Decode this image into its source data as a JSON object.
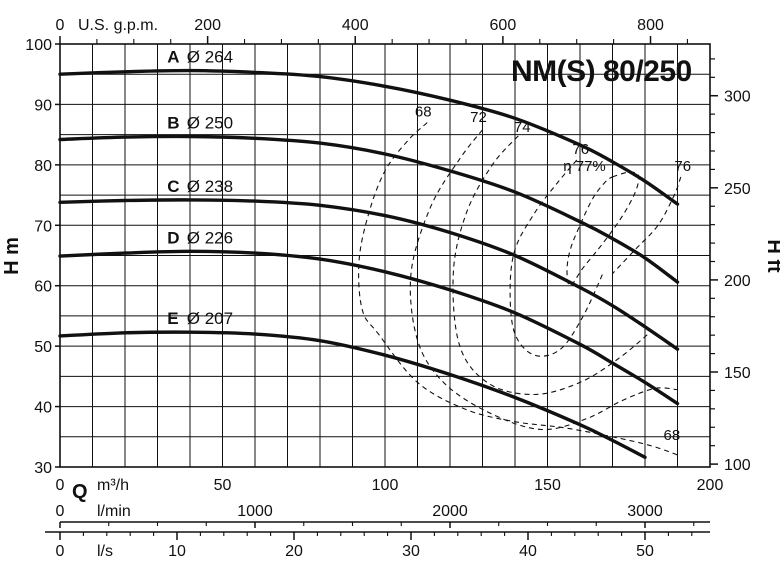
{
  "chart_data": {
    "type": "line",
    "title": "NM(S) 80/250",
    "ylabel": "H m",
    "y2label": "H ft",
    "xlabel": "Q",
    "x_unit": "m3/h",
    "x_units": {
      "top": "U.S. g.p.m.",
      "bottom_main": "m³/h",
      "bottom_lmin": "l/min",
      "bottom_ls": "l/s"
    },
    "xlim": [
      0,
      200
    ],
    "ylim": [
      30,
      100
    ],
    "grid": true,
    "x_ticks": [
      0,
      50,
      100,
      150,
      200
    ],
    "y_ticks": [
      30,
      40,
      50,
      60,
      70,
      80,
      90,
      100
    ],
    "y2_ticks": [
      100,
      150,
      200,
      250,
      300
    ],
    "gpm_ticks": [
      0,
      200,
      400,
      600,
      800
    ],
    "lmin_ticks": [
      0,
      1000,
      2000,
      3000
    ],
    "ls_ticks": [
      0,
      10,
      20,
      30,
      40,
      50
    ],
    "series": [
      {
        "name": "A",
        "diameter": "Ø 264",
        "x": [
          0,
          20,
          40,
          60,
          80,
          100,
          120,
          140,
          160,
          170,
          180,
          190
        ],
        "values": [
          95,
          95.4,
          95.6,
          95.3,
          94.6,
          93,
          90.7,
          87.7,
          83.3,
          80.5,
          77.3,
          73.5
        ]
      },
      {
        "name": "B",
        "diameter": "Ø 250",
        "x": [
          0,
          20,
          40,
          60,
          80,
          100,
          120,
          140,
          160,
          170,
          180,
          190
        ],
        "values": [
          84.2,
          84.6,
          84.7,
          84.4,
          83.6,
          81.8,
          79,
          75.5,
          70.6,
          67.8,
          64.6,
          60.6
        ]
      },
      {
        "name": "C",
        "diameter": "Ø 238",
        "x": [
          0,
          20,
          40,
          60,
          80,
          100,
          120,
          140,
          160,
          170,
          180,
          190
        ],
        "values": [
          73.8,
          74.1,
          74.2,
          74,
          73.3,
          71.6,
          68.8,
          65,
          59.7,
          56.7,
          53.2,
          49.5
        ]
      },
      {
        "name": "D",
        "diameter": "Ø 226",
        "x": [
          0,
          20,
          40,
          60,
          80,
          100,
          120,
          140,
          160,
          170,
          180,
          190
        ],
        "values": [
          64.9,
          65.4,
          65.7,
          65.4,
          64.4,
          62.3,
          59.3,
          55.5,
          50.3,
          47.2,
          44,
          40.5
        ]
      },
      {
        "name": "E",
        "diameter": "Ø 207",
        "x": [
          0,
          20,
          40,
          60,
          80,
          100,
          120,
          140,
          160,
          170,
          180
        ],
        "values": [
          51.7,
          52.2,
          52.3,
          52,
          50.9,
          48.5,
          45.3,
          41.5,
          37,
          34.4,
          31.6
        ]
      }
    ],
    "efficiency_contours": [
      {
        "label": "68",
        "x": [
          113,
          107,
          100,
          95,
          92,
          93,
          98,
          110,
          125,
          140,
          155,
          170,
          182,
          190
        ],
        "values": [
          87,
          84,
          79,
          72,
          64,
          56,
          52,
          44,
          39.5,
          37.5,
          36.5,
          35,
          33.5,
          32
        ]
      },
      {
        "label": "72",
        "x": [
          130,
          123,
          114,
          108,
          110,
          118,
          132,
          148,
          162,
          173,
          183,
          190
        ],
        "values": [
          85.8,
          81,
          73,
          62,
          51,
          44,
          39,
          36.2,
          38,
          41,
          43,
          42.8
        ]
      },
      {
        "label": "74",
        "x": [
          141,
          133,
          125,
          121,
          123,
          132,
          146,
          160,
          172,
          182
        ],
        "values": [
          84.8,
          80,
          72,
          62,
          50,
          43.8,
          42,
          44,
          48,
          52.5
        ]
      },
      {
        "label": "76",
        "x": [
          159,
          153,
          146,
          140,
          138.5,
          140,
          146,
          154,
          161,
          167
        ],
        "values": [
          80.8,
          77,
          72,
          66,
          59,
          52,
          48.5,
          49.5,
          55,
          62
        ]
      },
      {
        "label": "76",
        "x": [
          191,
          189,
          184,
          177,
          170
        ],
        "values": [
          78,
          75,
          70,
          66,
          62
        ]
      },
      {
        "label": "η 77%",
        "x": [
          170,
          175,
          178,
          177,
          173,
          167,
          161,
          157,
          156,
          157,
          160,
          164,
          168,
          170
        ],
        "values": [
          78,
          78.8,
          78.2,
          75.5,
          71.5,
          67,
          63,
          60,
          62.5,
          66,
          70,
          74.5,
          77.3,
          78
        ]
      }
    ],
    "eff_label_68_low": "68"
  }
}
